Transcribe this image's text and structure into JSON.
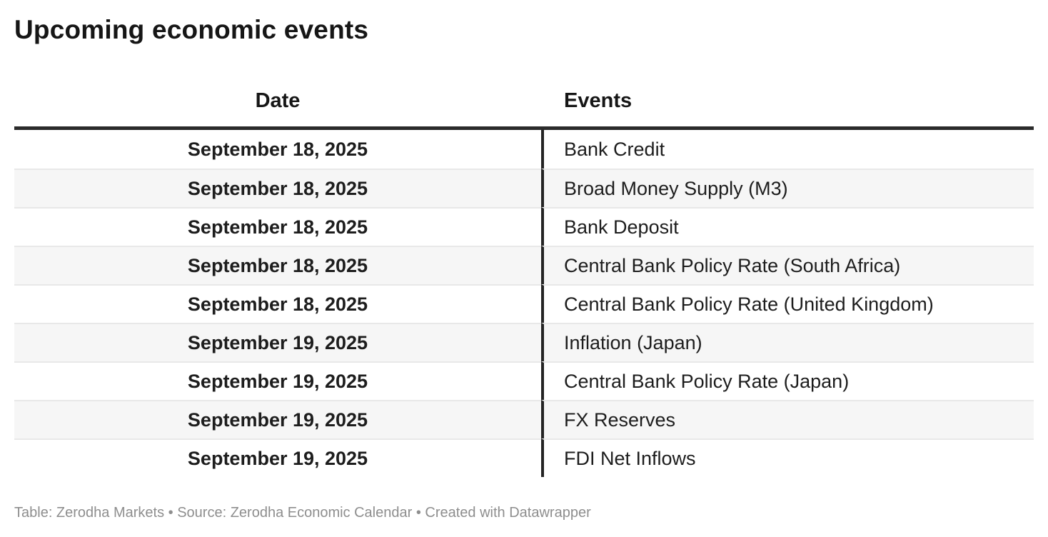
{
  "title": "Upcoming economic events",
  "chart_data": {
    "type": "table",
    "title": "Upcoming economic events",
    "columns": [
      "Date",
      "Events"
    ],
    "rows": [
      [
        "September 18, 2025",
        "Bank Credit"
      ],
      [
        "September 18, 2025",
        "Broad Money Supply (M3)"
      ],
      [
        "September 18, 2025",
        "Bank Deposit"
      ],
      [
        "September 18, 2025",
        "Central Bank Policy Rate (South Africa)"
      ],
      [
        "September 18, 2025",
        "Central Bank Policy Rate (United Kingdom)"
      ],
      [
        "September 19, 2025",
        "Inflation (Japan)"
      ],
      [
        "September 19, 2025",
        "Central Bank Policy Rate (Japan)"
      ],
      [
        "September 19, 2025",
        "FX Reserves"
      ],
      [
        "September 19, 2025",
        "FDI Net Inflows"
      ]
    ],
    "layout_hints": {
      "date_column_align": "center",
      "events_column_align": "left",
      "zebra_striping": true,
      "stripe_start_row": 2
    },
    "footer": "Table: Zerodha Markets • Source: Zerodha Economic Calendar • Created with Datawrapper"
  },
  "footer": {
    "text": "Table: Zerodha Markets • Source: Zerodha Economic Calendar • Created with Datawrapper"
  },
  "colors": {
    "title_text": "#161616",
    "body_text": "#1d1d1d",
    "stripe": "#f6f6f6",
    "row_divider": "#e8e8e8",
    "header_rule": "#2b2b2b",
    "column_divider": "#242424",
    "footer_text": "#8e8e8e",
    "background": "#ffffff"
  }
}
